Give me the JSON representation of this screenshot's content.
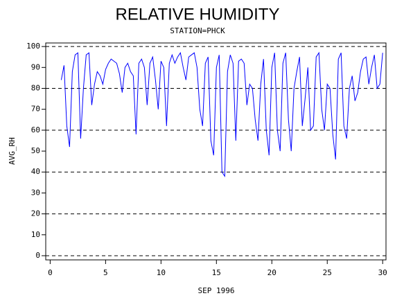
{
  "chart_data": {
    "type": "line",
    "title": "RELATIVE HUMIDITY",
    "subtitle": "STATION=PHCK",
    "x_label": "SEP 1996",
    "y_label": "AVG_RH",
    "color": "#0000ff",
    "xlim": [
      -0.4,
      30.3
    ],
    "ylim": [
      -2,
      101.7
    ],
    "xticks": [
      0,
      5,
      10,
      15,
      20,
      25,
      30
    ],
    "yticks": [
      0,
      10,
      20,
      30,
      40,
      50,
      60,
      70,
      80,
      90,
      100
    ],
    "ygrid": [
      0,
      20,
      40,
      60,
      80,
      100
    ],
    "x": [
      1,
      1.25,
      1.5,
      1.75,
      2,
      2.25,
      2.5,
      2.75,
      3,
      3.25,
      3.5,
      3.75,
      4,
      4.25,
      4.5,
      4.75,
      5,
      5.25,
      5.5,
      5.75,
      6,
      6.25,
      6.5,
      6.75,
      7,
      7.25,
      7.5,
      7.75,
      8,
      8.25,
      8.5,
      8.75,
      9,
      9.25,
      9.5,
      9.75,
      10,
      10.25,
      10.5,
      10.75,
      11,
      11.25,
      11.5,
      11.75,
      12,
      12.25,
      12.5,
      12.75,
      13,
      13.25,
      13.5,
      13.75,
      14,
      14.25,
      14.5,
      14.75,
      15,
      15.25,
      15.5,
      15.75,
      16,
      16.25,
      16.5,
      16.75,
      17,
      17.25,
      17.5,
      17.75,
      18,
      18.25,
      18.5,
      18.75,
      19,
      19.25,
      19.5,
      19.75,
      20,
      20.25,
      20.5,
      20.75,
      21,
      21.25,
      21.5,
      21.75,
      22,
      22.25,
      22.5,
      22.75,
      23,
      23.25,
      23.5,
      23.75,
      24,
      24.25,
      24.5,
      24.75,
      25,
      25.25,
      25.5,
      25.75,
      26,
      26.25,
      26.5,
      26.75,
      27,
      27.25,
      27.5,
      27.75,
      28,
      28.25,
      28.5,
      28.75,
      29,
      29.25,
      29.5,
      29.75,
      30
    ],
    "values": [
      84,
      91,
      62,
      52,
      88,
      96,
      97,
      56,
      80,
      96,
      97,
      72,
      82,
      88,
      86,
      82,
      89,
      92,
      94,
      93,
      92,
      87,
      78,
      90,
      92,
      88,
      86,
      58,
      92,
      94,
      90,
      72,
      92,
      95,
      84,
      70,
      93,
      90,
      62,
      92,
      96,
      92,
      95,
      97,
      90,
      84,
      95,
      96,
      97,
      90,
      70,
      62,
      92,
      95,
      55,
      48,
      90,
      96,
      40,
      38,
      88,
      96,
      92,
      55,
      93,
      94,
      92,
      72,
      82,
      80,
      65,
      55,
      82,
      94,
      60,
      48,
      90,
      97,
      60,
      50,
      92,
      97,
      65,
      50,
      80,
      88,
      95,
      62,
      75,
      90,
      60,
      62,
      95,
      97,
      70,
      60,
      82,
      80,
      58,
      46,
      94,
      97,
      62,
      56,
      80,
      86,
      74,
      78,
      88,
      94,
      95,
      82,
      90,
      96,
      80,
      82,
      97
    ]
  }
}
